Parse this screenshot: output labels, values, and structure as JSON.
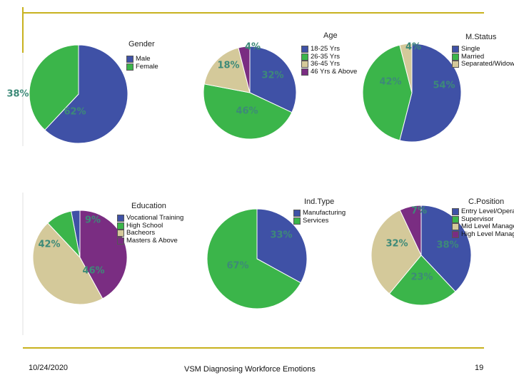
{
  "footer": {
    "date": "10/24/2020",
    "center": "VSM Diagnosing Workforce Emotions",
    "page": "19"
  },
  "theme": {
    "accent_line": "#c8b21e",
    "label_color": "#3d8a78"
  },
  "chart_data": [
    {
      "type": "pie",
      "title": "Gender",
      "categories": [
        "Male",
        "Female"
      ],
      "values": [
        62,
        38
      ],
      "labels": [
        "62%",
        "38%"
      ],
      "colors": [
        "#3f51a6",
        "#3bb54a"
      ]
    },
    {
      "type": "pie",
      "title": "Age",
      "categories": [
        "18-25 Yrs",
        "26-35 Yrs",
        "36-45 Yrs",
        "46 Yrs & Above"
      ],
      "values": [
        32,
        46,
        18,
        4
      ],
      "labels": [
        "32%",
        "46%",
        "18%",
        "4%"
      ],
      "colors": [
        "#3f51a6",
        "#3bb54a",
        "#d4c99a",
        "#7a2d82"
      ]
    },
    {
      "type": "pie",
      "title": "M.Status",
      "categories": [
        "Single",
        "Married",
        "Separated/Widow"
      ],
      "values": [
        54,
        42,
        4
      ],
      "labels": [
        "54%",
        "42%",
        "4%"
      ],
      "colors": [
        "#3f51a6",
        "#3bb54a",
        "#d4c99a"
      ]
    },
    {
      "type": "pie",
      "title": "Education",
      "categories": [
        "Vocational Training",
        "High School",
        "Bacheors",
        "Masters & Above"
      ],
      "values": [
        3,
        9,
        46,
        42
      ],
      "labels": [
        "",
        "9%",
        "46%",
        "42%"
      ],
      "colors": [
        "#3f51a6",
        "#3bb54a",
        "#d4c99a",
        "#7a2d82"
      ]
    },
    {
      "type": "pie",
      "title": "Ind.Type",
      "categories": [
        "Manufacturing",
        "Services"
      ],
      "values": [
        33,
        67
      ],
      "labels": [
        "33%",
        "67%"
      ],
      "colors": [
        "#3f51a6",
        "#3bb54a"
      ]
    },
    {
      "type": "pie",
      "title": "C.Position",
      "categories": [
        "Entry Level/Operation",
        "Supervisor",
        "Mid Level Manager",
        "High Level Manager"
      ],
      "values": [
        38,
        23,
        32,
        7
      ],
      "labels": [
        "38%",
        "23%",
        "32%",
        "7%"
      ],
      "colors": [
        "#3f51a6",
        "#3bb54a",
        "#d4c99a",
        "#7a2d82"
      ]
    }
  ]
}
